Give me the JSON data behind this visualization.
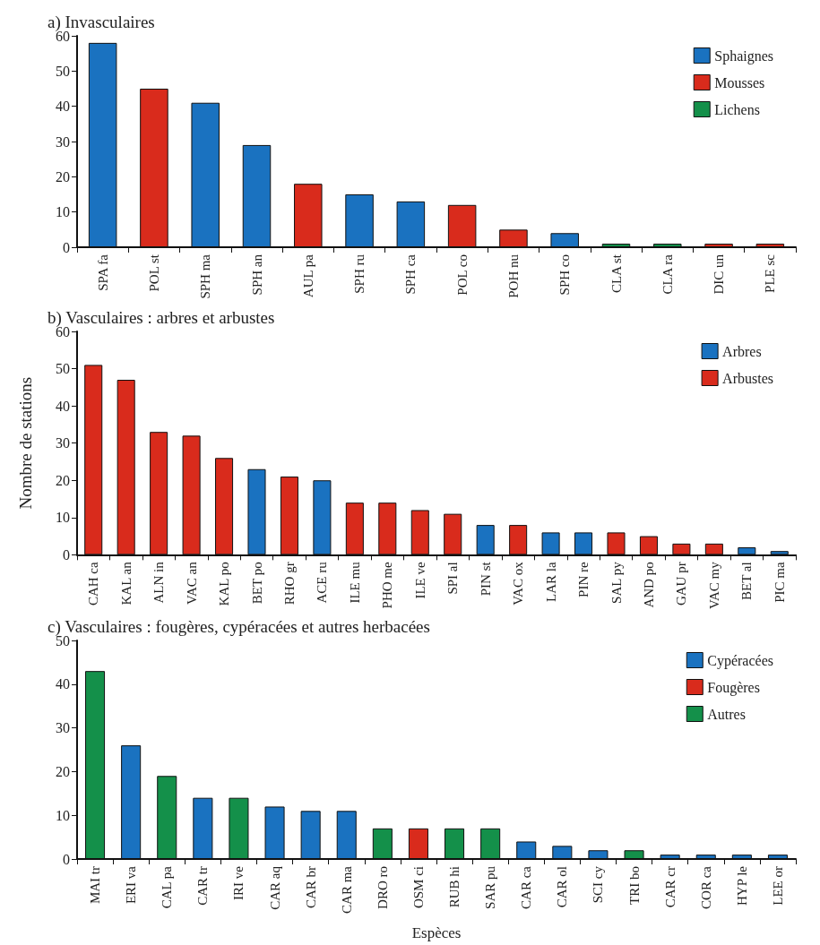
{
  "chart_data": [
    {
      "type": "bar",
      "title": "a) Invasculaires",
      "categories": [
        "SPA fa",
        "POL st",
        "SPH ma",
        "SPH an",
        "AUL pa",
        "SPH ru",
        "SPH ca",
        "POL co",
        "POH nu",
        "SPH co",
        "CLA st",
        "CLA ra",
        "DIC un",
        "PLE sc"
      ],
      "stacked": true,
      "series": [
        {
          "name": "Sphaignes",
          "color": "#1a72c0",
          "values": [
            58,
            null,
            41,
            29,
            null,
            15,
            13,
            null,
            null,
            4,
            null,
            null,
            null,
            null
          ]
        },
        {
          "name": "Mousses",
          "color": "#d92b1c",
          "values": [
            null,
            45,
            null,
            null,
            18,
            null,
            null,
            12,
            5,
            null,
            null,
            null,
            1,
            1
          ]
        },
        {
          "name": "Lichens",
          "color": "#14904a",
          "values": [
            null,
            null,
            null,
            null,
            null,
            null,
            null,
            null,
            null,
            null,
            1,
            1,
            null,
            null
          ]
        }
      ],
      "ylim": [
        0,
        60
      ],
      "yticks": [
        0,
        10,
        20,
        30,
        40,
        50,
        60
      ],
      "grid": false,
      "legend": "top right"
    },
    {
      "type": "bar",
      "title": "b) Vasculaires : arbres et arbustes",
      "ylabel": "Nombre de stations",
      "categories": [
        "CAH ca",
        "KAL an",
        "ALN in",
        "VAC an",
        "KAL po",
        "BET po",
        "RHO gr",
        "ACE ru",
        "ILE mu",
        "PHO me",
        "ILE ve",
        "SPI al",
        "PIN st",
        "VAC ox",
        "LAR la",
        "PIN re",
        "SAL py",
        "AND po",
        "GAU pr",
        "VAC my",
        "BET al",
        "PIC ma"
      ],
      "stacked": true,
      "series": [
        {
          "name": "Arbres",
          "color": "#1a72c0",
          "values": [
            null,
            null,
            null,
            null,
            null,
            23,
            null,
            20,
            null,
            null,
            null,
            null,
            8,
            null,
            6,
            6,
            null,
            null,
            null,
            null,
            2,
            1
          ]
        },
        {
          "name": "Arbustes",
          "color": "#d92b1c",
          "values": [
            51,
            47,
            33,
            32,
            26,
            null,
            21,
            null,
            14,
            14,
            12,
            11,
            null,
            8,
            null,
            null,
            6,
            5,
            3,
            3,
            null,
            null
          ]
        }
      ],
      "ylim": [
        0,
        60
      ],
      "yticks": [
        0,
        10,
        20,
        30,
        40,
        50,
        60
      ],
      "grid": false,
      "legend": "top right"
    },
    {
      "type": "bar",
      "title": "c) Vasculaires : fougères, cypéracées et autres herbacées",
      "xlabel": "Espèces",
      "categories": [
        "MAI tr",
        "ERI va",
        "CAL pa",
        "CAR tr",
        "IRI ve",
        "CAR aq",
        "CAR br",
        "CAR ma",
        "DRO ro",
        "OSM ci",
        "RUB hi",
        "SAR pu",
        "CAR ca",
        "CAR ol",
        "SCI cy",
        "TRI bo",
        "CAR cr",
        "COR ca",
        "HYP le",
        "LEE or"
      ],
      "stacked": true,
      "series": [
        {
          "name": "Cypéracées",
          "color": "#1a72c0",
          "values": [
            null,
            26,
            null,
            14,
            null,
            12,
            11,
            11,
            null,
            null,
            null,
            null,
            4,
            3,
            2,
            null,
            1,
            1,
            1,
            1
          ]
        },
        {
          "name": "Fougères",
          "color": "#d92b1c",
          "values": [
            null,
            null,
            null,
            null,
            null,
            null,
            null,
            null,
            null,
            7,
            null,
            null,
            null,
            null,
            null,
            null,
            null,
            null,
            null,
            null
          ]
        },
        {
          "name": "Autres",
          "color": "#14904a",
          "values": [
            43,
            null,
            19,
            null,
            14,
            null,
            null,
            null,
            7,
            null,
            7,
            7,
            null,
            null,
            null,
            2,
            null,
            null,
            null,
            null
          ]
        }
      ],
      "ylim": [
        0,
        50
      ],
      "yticks": [
        0,
        10,
        20,
        30,
        40,
        50
      ],
      "grid": false,
      "legend": "top right"
    }
  ]
}
